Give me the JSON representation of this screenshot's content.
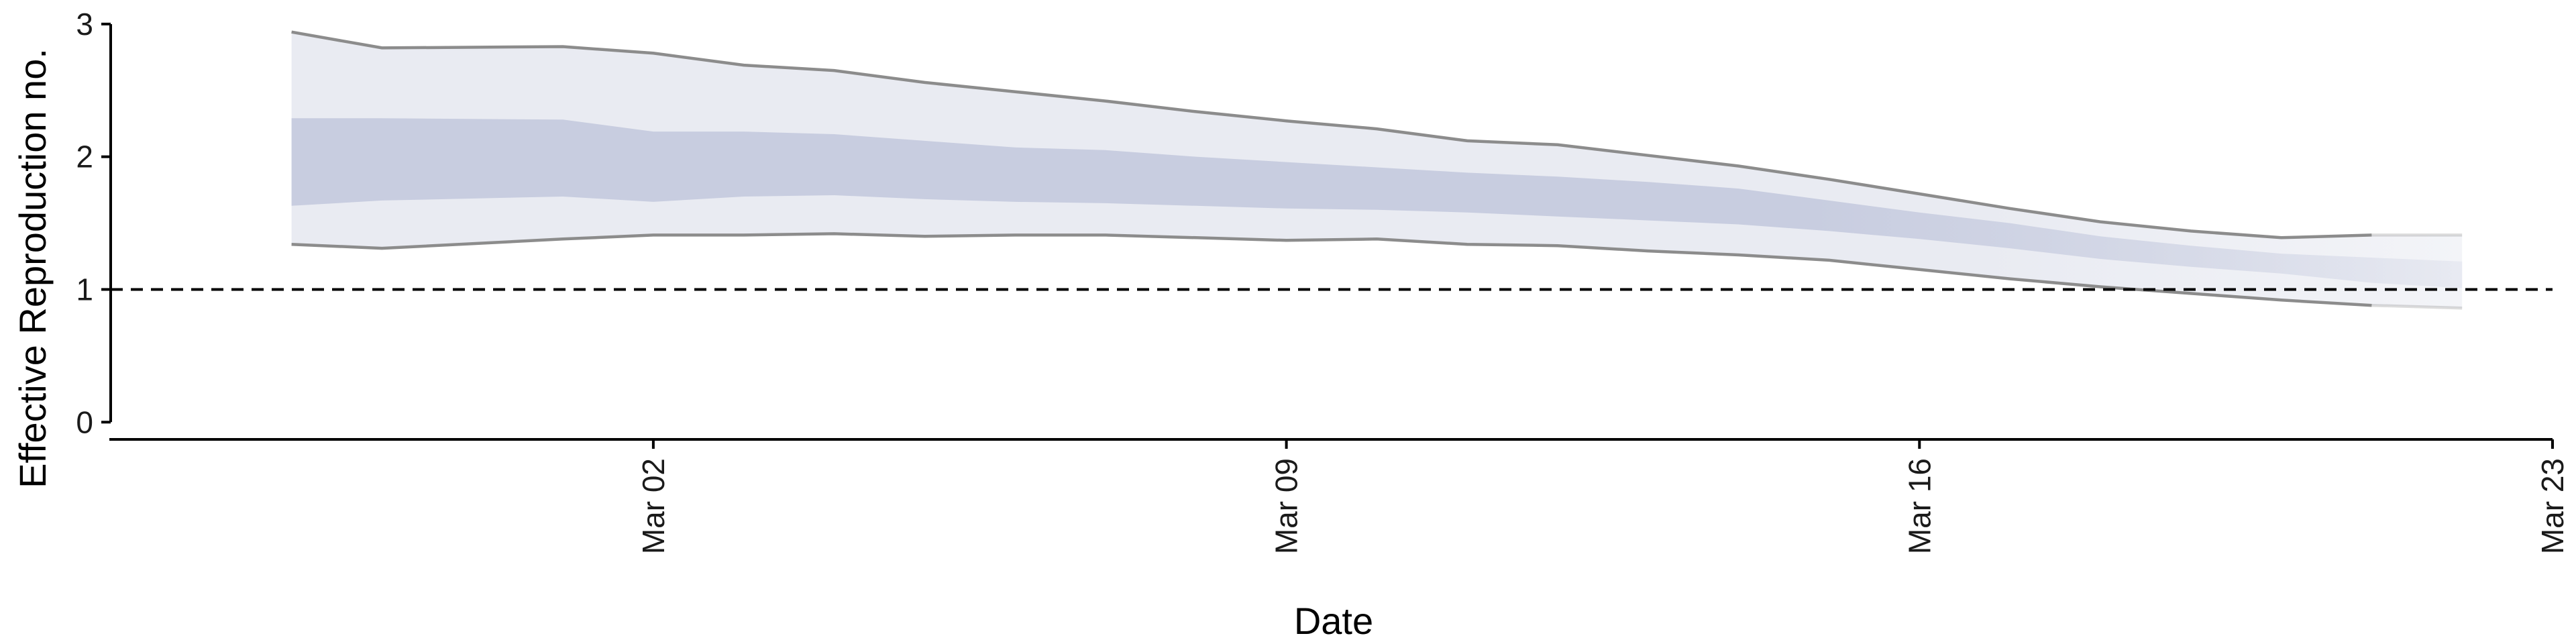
{
  "chart_data": {
    "type": "area",
    "title": "",
    "xlabel": "Date",
    "ylabel": "Effective Reproduction no.",
    "xlim": [
      "2020-02-25",
      "2020-03-23"
    ],
    "ylim": [
      -0.13,
      3.08
    ],
    "x_ticks": [
      {
        "date": "2020-03-02",
        "label": "Mar 02"
      },
      {
        "date": "2020-03-09",
        "label": "Mar 09"
      },
      {
        "date": "2020-03-16",
        "label": "Mar 16"
      },
      {
        "date": "2020-03-23",
        "label": "Mar 23"
      }
    ],
    "y_ticks": [
      0,
      1,
      2,
      3
    ],
    "reference_line": {
      "y": 1,
      "style": "dashed"
    },
    "grid": false,
    "legend": "none",
    "colors": {
      "outer_band": "#e9ebf2",
      "inner_band": "#c8cde0",
      "bound_line": "#8c8c8c",
      "axis": "#000000"
    },
    "x": [
      "2020-02-27",
      "2020-02-28",
      "2020-03-01",
      "2020-03-02",
      "2020-03-03",
      "2020-03-04",
      "2020-03-05",
      "2020-03-06",
      "2020-03-07",
      "2020-03-08",
      "2020-03-09",
      "2020-03-10",
      "2020-03-11",
      "2020-03-12",
      "2020-03-13",
      "2020-03-14",
      "2020-03-15",
      "2020-03-16",
      "2020-03-17",
      "2020-03-18",
      "2020-03-19",
      "2020-03-20",
      "2020-03-21",
      "2020-03-22"
    ],
    "series": [
      {
        "values_upper": [
          2.94,
          2.82,
          2.83,
          2.78,
          2.69,
          2.65,
          2.56,
          2.49,
          2.42,
          2.34,
          2.27,
          2.21,
          2.12,
          2.09,
          2.01,
          1.93,
          1.83,
          1.72,
          1.61,
          1.51,
          1.44,
          1.39,
          1.41,
          1.41
        ]
      },
      {
        "values_upper": [
          2.29,
          2.29,
          2.28,
          2.19,
          2.19,
          2.17,
          2.12,
          2.07,
          2.05,
          2.0,
          1.96,
          1.92,
          1.88,
          1.85,
          1.81,
          1.76,
          1.67,
          1.58,
          1.5,
          1.4,
          1.33,
          1.27,
          1.24,
          1.21
        ]
      },
      {
        "values_lower": [
          1.63,
          1.67,
          1.7,
          1.66,
          1.7,
          1.71,
          1.68,
          1.66,
          1.65,
          1.63,
          1.61,
          1.6,
          1.58,
          1.55,
          1.52,
          1.49,
          1.44,
          1.38,
          1.31,
          1.23,
          1.17,
          1.12,
          1.05,
          1.01
        ]
      },
      {
        "values_lower": [
          1.34,
          1.31,
          1.38,
          1.41,
          1.41,
          1.42,
          1.4,
          1.41,
          1.41,
          1.39,
          1.37,
          1.38,
          1.34,
          1.33,
          1.29,
          1.26,
          1.22,
          1.15,
          1.08,
          1.02,
          0.97,
          0.92,
          0.88,
          0.86
        ]
      }
    ]
  }
}
